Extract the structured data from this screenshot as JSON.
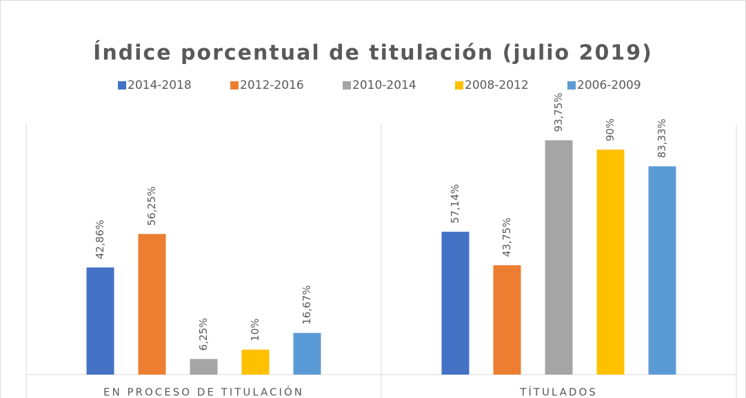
{
  "chart_data": {
    "type": "bar",
    "title": "Índice porcentual de titulación (julio 2019)",
    "categories": [
      "EN PROCESO DE TITULACIÓN",
      "TÍTULADOS"
    ],
    "series": [
      {
        "name": "2014-2018",
        "color": "#4472c4",
        "values": [
          42.86,
          57.14
        ],
        "value_labels": [
          "42,86%",
          "57,14%"
        ]
      },
      {
        "name": "2012-2016",
        "color": "#ed7d31",
        "values": [
          56.25,
          43.75
        ],
        "value_labels": [
          "56,25%",
          "43,75%"
        ]
      },
      {
        "name": "2010-2014",
        "color": "#a5a5a5",
        "values": [
          6.25,
          93.75
        ],
        "value_labels": [
          "6,25%",
          "93,75%"
        ]
      },
      {
        "name": "2008-2012",
        "color": "#ffc000",
        "values": [
          10,
          90
        ],
        "value_labels": [
          "10%",
          "90%"
        ]
      },
      {
        "name": "2006-2009",
        "color": "#5b9bd5",
        "values": [
          16.67,
          83.33
        ],
        "value_labels": [
          "16,67%",
          "83,33%"
        ]
      }
    ],
    "ylim": [
      0,
      100
    ],
    "legend": "top"
  }
}
